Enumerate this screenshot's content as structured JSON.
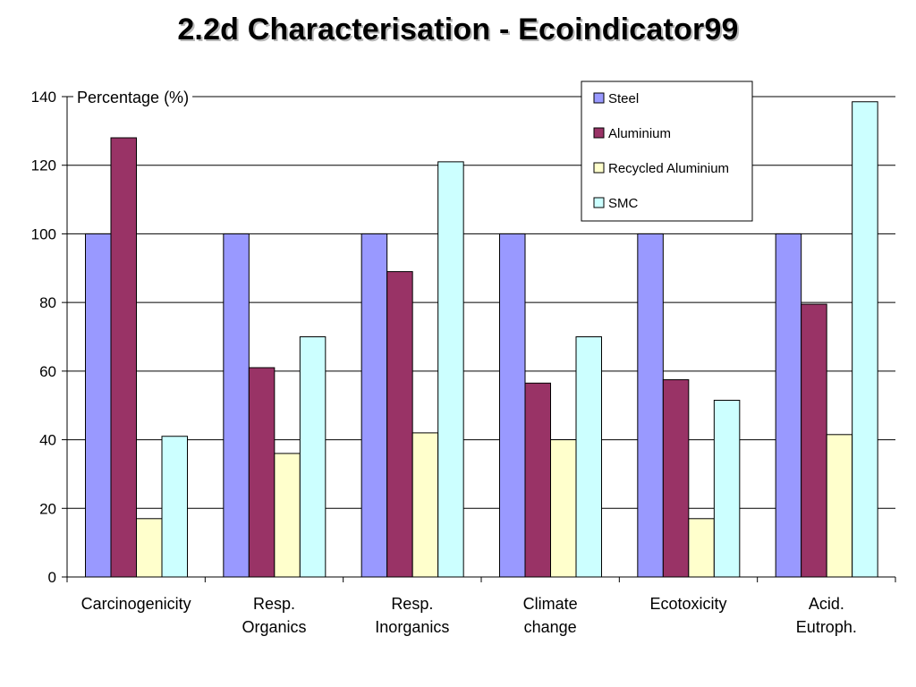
{
  "slide": {
    "title": "2.2d Characterisation - Ecoindicator99"
  },
  "chart_data": {
    "type": "bar",
    "title": "",
    "ylabel": "Percentage (%)",
    "xlabel": "",
    "ylim": [
      0,
      140
    ],
    "yticks": [
      0,
      20,
      40,
      60,
      80,
      100,
      120,
      140
    ],
    "grid": true,
    "legend_position": "top-right",
    "categories": [
      [
        "Carcinogenicity"
      ],
      [
        "Resp.",
        "Organics"
      ],
      [
        "Resp.",
        "Inorganics"
      ],
      [
        "Climate",
        "change"
      ],
      [
        "Ecotoxicity"
      ],
      [
        "Acid.",
        "Eutroph."
      ]
    ],
    "series": [
      {
        "name": "Steel",
        "color": "#9999ff",
        "values": [
          100,
          100,
          100,
          100,
          100,
          100
        ]
      },
      {
        "name": "Aluminium",
        "color": "#993366",
        "values": [
          128,
          61,
          89,
          56.5,
          57.5,
          79.5
        ]
      },
      {
        "name": "Recycled Aluminium",
        "color": "#ffffcc",
        "values": [
          17,
          36,
          42,
          40,
          17,
          41.5
        ]
      },
      {
        "name": "SMC",
        "color": "#ccffff",
        "values": [
          41,
          70,
          121,
          70,
          51.5,
          138.5
        ]
      }
    ]
  }
}
